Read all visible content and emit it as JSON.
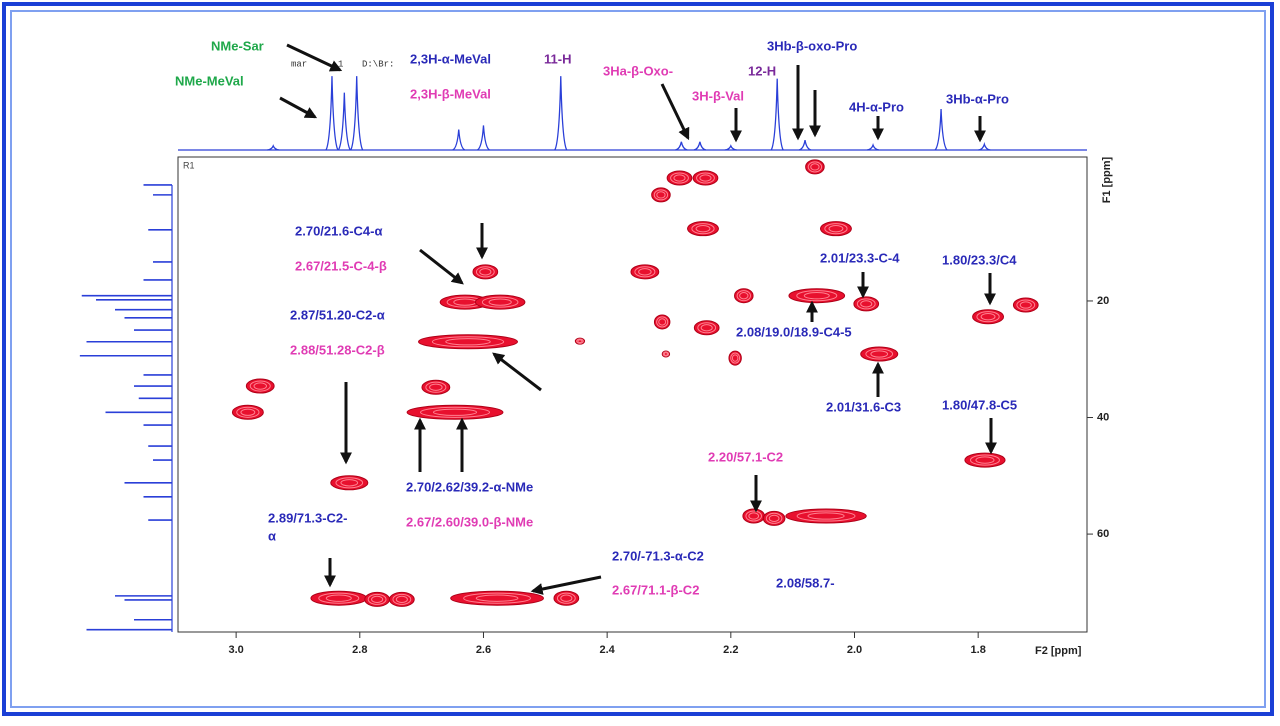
{
  "chart_data": {
    "type": "nmr2d",
    "plot_label": "R1",
    "xlabel": "F2 [ppm]",
    "ylabel": "F1 [ppm]",
    "xlim": [
      3.094,
      1.624
    ],
    "ylim": [
      -4.7,
      76.8
    ],
    "xticks": [
      {
        "value": 3.0,
        "label": "3.0"
      },
      2.8,
      2.6,
      2.4,
      2.2,
      {
        "value": 2.0,
        "label": "2.0"
      },
      1.8
    ],
    "yticks": [
      20,
      40,
      60
    ],
    "peak_color": "#e8102e",
    "projection_color": "#2a3fd8",
    "peaks": {
      "x": [
        2.283,
        2.241,
        2.313,
        2.064,
        2.245,
        2.03,
        2.597,
        2.339,
        2.63,
        2.573,
        2.625,
        2.961,
        2.981,
        2.677,
        2.646,
        2.817,
        2.834,
        2.772,
        2.732,
        2.578,
        2.466,
        2.179,
        2.061,
        1.981,
        1.784,
        1.723,
        2.311,
        2.239,
        1.96,
        2.193,
        2.444,
        2.305,
        1.789,
        2.163,
        2.13,
        2.046
      ],
      "values": [
        -1.1,
        -1.1,
        1.8,
        -3.0,
        7.6,
        7.6,
        15.0,
        15.0,
        20.2,
        20.2,
        27.0,
        34.6,
        39.1,
        34.8,
        39.1,
        51.2,
        71.0,
        71.2,
        71.2,
        71.0,
        71.0,
        19.1,
        19.1,
        20.5,
        22.7,
        20.7,
        23.6,
        24.6,
        29.1,
        29.8,
        26.9,
        29.1,
        47.3,
        56.9,
        57.3,
        56.9
      ],
      "widths": [
        0.04,
        0.04,
        0.03,
        0.03,
        0.05,
        0.05,
        0.04,
        0.045,
        0.08,
        0.08,
        0.16,
        0.045,
        0.05,
        0.045,
        0.155,
        0.06,
        0.09,
        0.04,
        0.04,
        0.15,
        0.04,
        0.03,
        0.09,
        0.04,
        0.05,
        0.04,
        0.025,
        0.04,
        0.06,
        0.02,
        0.015,
        0.012,
        0.065,
        0.035,
        0.035,
        0.13
      ]
    },
    "f2_projection": {
      "x": [
        2.845,
        2.825,
        2.805,
        2.94,
        2.64,
        2.6,
        2.475,
        2.28,
        2.25,
        2.2,
        2.125,
        2.08,
        1.97,
        1.86,
        1.79
      ],
      "values": [
        0.9,
        0.7,
        0.9,
        0.05,
        0.25,
        0.3,
        0.9,
        0.1,
        0.1,
        0.05,
        0.87,
        0.12,
        0.06,
        0.5,
        0.07
      ]
    },
    "f1_projection": {
      "y": [
        0.1,
        1.8,
        7.8,
        13.3,
        16.4,
        19.1,
        19.8,
        21.5,
        22.9,
        25.0,
        27.0,
        29.4,
        32.7,
        34.6,
        36.7,
        39.1,
        41.3,
        44.9,
        47.3,
        51.2,
        53.6,
        57.6,
        70.6,
        71.3,
        74.7,
        76.4
      ],
      "values": [
        0.3,
        0.2,
        0.25,
        0.2,
        0.3,
        0.95,
        0.8,
        0.6,
        0.5,
        0.4,
        0.9,
        0.97,
        0.3,
        0.4,
        0.35,
        0.7,
        0.3,
        0.25,
        0.2,
        0.5,
        0.3,
        0.25,
        0.6,
        0.5,
        0.4,
        0.9
      ]
    },
    "header_fragments": [
      "mar",
      "1",
      "D:\\Br:"
    ],
    "annotations": [
      {
        "text": "NMe-Sar",
        "color": "#1fa84a"
      },
      {
        "text": "NMe-MeVal",
        "color": "#1fa84a"
      },
      {
        "text": "2,3H-α-MeVal",
        "color": "#2a2ab8"
      },
      {
        "text": "2,3H-β-MeVal",
        "color": "#e03cb4"
      },
      {
        "text": "11-H",
        "color": "#7a2a9a"
      },
      {
        "text": "3Ha-β-Oxo-",
        "color": "#e03cb4"
      },
      {
        "text": "3H-β-Val",
        "color": "#e03cb4"
      },
      {
        "text": "12-H",
        "color": "#7a2a9a"
      },
      {
        "text": "3Hb-β-oxo-Pro",
        "color": "#2a2ab8"
      },
      {
        "text": "4H-α-Pro",
        "color": "#2a2ab8"
      },
      {
        "text": "3Hb-α-Pro",
        "color": "#2a2ab8"
      },
      {
        "text": "2.70/21.6-C4-α",
        "color": "#2a2ab8"
      },
      {
        "text": "2.67/21.5-C-4-β",
        "color": "#e03cb4"
      },
      {
        "text": "2.87/51.20-C2-α",
        "color": "#2a2ab8"
      },
      {
        "text": "2.88/51.28-C2-β",
        "color": "#e03cb4"
      },
      {
        "text": "2.01/23.3-C-4",
        "color": "#2a2ab8"
      },
      {
        "text": "1.80/23.3/C4",
        "color": "#2a2ab8"
      },
      {
        "text": "2.08/19.0/18.9-C4-5",
        "color": "#2a2ab8"
      },
      {
        "text": "2.01/31.6-C3",
        "color": "#2a2ab8"
      },
      {
        "text": "1.80/47.8-C5",
        "color": "#2a2ab8"
      },
      {
        "text": "2.20/57.1-C2",
        "color": "#e03cb4"
      },
      {
        "text": "2.70/2.62/39.2-α-NMe",
        "color": "#2a2ab8"
      },
      {
        "text": "2.67/2.60/39.0-β-NMe",
        "color": "#e03cb4"
      },
      {
        "text": "2.89/71.3-C2-",
        "color": "#2a2ab8"
      },
      {
        "text": "α",
        "color": "#2a2ab8"
      },
      {
        "text": "2.70/-71.3-α-C2",
        "color": "#2a2ab8"
      },
      {
        "text": "2.67/71.1-β-C2",
        "color": "#e03cb4"
      },
      {
        "text": "2.08/58.7-",
        "color": "#2a2ab8"
      }
    ]
  }
}
